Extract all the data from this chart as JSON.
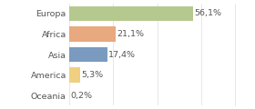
{
  "categories": [
    "Europa",
    "Africa",
    "Asia",
    "America",
    "Oceania"
  ],
  "values": [
    56.1,
    21.1,
    17.4,
    5.3,
    0.2
  ],
  "labels": [
    "56,1%",
    "21,1%",
    "17,4%",
    "5,3%",
    "0,2%"
  ],
  "bar_colors": [
    "#b5c98e",
    "#e8a97e",
    "#7a9bbf",
    "#f0d080",
    "#e8c97e"
  ],
  "background_color": "#ffffff",
  "xlim": [
    0,
    75
  ],
  "bar_height": 0.72,
  "label_fontsize": 6.8,
  "tick_fontsize": 6.8,
  "grid_color": "#dddddd",
  "text_color": "#555555"
}
